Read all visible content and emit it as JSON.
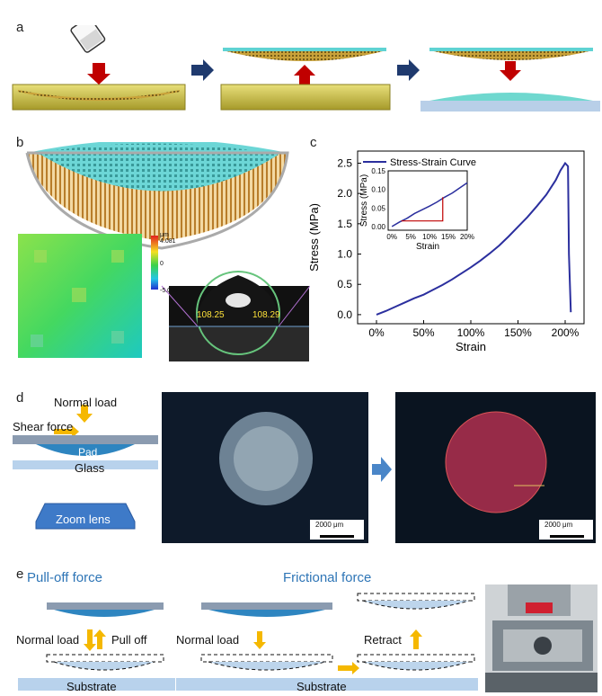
{
  "panels": {
    "a": "a",
    "b": "b",
    "c": "c",
    "d": "d",
    "e": "e"
  },
  "panel_b": {
    "colorbar_unit": "μm",
    "colorbar_max": "4.081",
    "colorbar_mid": "0",
    "colorbar_min": "-5.009",
    "contact_angle_left": "108.25",
    "contact_angle_right": "108.29"
  },
  "panel_d": {
    "normal_load": "Normal load",
    "shear_force": "Shear force",
    "pad": "Pad",
    "glass": "Glass",
    "zoom_lens": "Zoom lens",
    "scalebar_left": "2000 μm",
    "scalebar_right": "2000 μm"
  },
  "panel_e": {
    "pulloff_title": "Pull-off force",
    "friction_title": "Frictional force",
    "normal_load_1": "Normal load",
    "pull_off": "Pull off",
    "substrate_1": "Substrate",
    "normal_load_2": "Normal load",
    "retract": "Retract",
    "substrate_2": "Substrate"
  },
  "colors": {
    "accent_blue": "#2e75b6",
    "arrow_red": "#c00000",
    "arrow_navy": "#1f3a6e",
    "arrow_yellow": "#f5b800",
    "pad_cyan": "#5fd3d3",
    "curve": "#2b2f9e"
  },
  "chart_data": {
    "type": "line",
    "xlabel": "Strain",
    "ylabel": "Stress (MPa)",
    "legend": "Stress-Strain Curve",
    "legend_position": "top-left",
    "xlim": [
      -0.2,
      2.2
    ],
    "ylim": [
      -0.15,
      2.7
    ],
    "xticks": [
      "0%",
      "50%",
      "100%",
      "150%",
      "200%"
    ],
    "xtick_values": [
      0,
      0.5,
      1.0,
      1.5,
      2.0
    ],
    "yticks": [
      "0.0",
      "0.5",
      "1.0",
      "1.5",
      "2.0",
      "2.5"
    ],
    "ytick_values": [
      0,
      0.5,
      1.0,
      1.5,
      2.0,
      2.5
    ],
    "series": [
      {
        "x": [
          0,
          0.1,
          0.2,
          0.3,
          0.4,
          0.5,
          0.6,
          0.7,
          0.8,
          0.9,
          1.0,
          1.1,
          1.2,
          1.3,
          1.4,
          1.5,
          1.6,
          1.7,
          1.8,
          1.9,
          1.95,
          2.0,
          2.03,
          2.04,
          2.06
        ],
        "y": [
          0,
          0.06,
          0.13,
          0.2,
          0.27,
          0.33,
          0.41,
          0.49,
          0.58,
          0.68,
          0.78,
          0.89,
          1.01,
          1.14,
          1.29,
          1.45,
          1.61,
          1.79,
          1.98,
          2.22,
          2.38,
          2.5,
          2.45,
          1.0,
          0.04
        ]
      }
    ],
    "inset": {
      "xlabel": "Strain",
      "ylabel": "Stress (MPa)",
      "xlim": [
        -0.01,
        0.2
      ],
      "ylim": [
        -0.01,
        0.15
      ],
      "xticks": [
        "0%",
        "5%",
        "10%",
        "15%",
        "20%"
      ],
      "xtick_values": [
        0,
        0.05,
        0.1,
        0.15,
        0.2
      ],
      "yticks": [
        "0.00",
        "0.05",
        "0.10",
        "0.15"
      ],
      "ytick_values": [
        0,
        0.05,
        0.1,
        0.15
      ],
      "x": [
        0,
        0.02,
        0.04,
        0.06,
        0.08,
        0.1,
        0.12,
        0.14,
        0.16,
        0.18,
        0.2
      ],
      "y": [
        0,
        0.012,
        0.022,
        0.035,
        0.045,
        0.055,
        0.066,
        0.079,
        0.09,
        0.104,
        0.118
      ]
    }
  }
}
